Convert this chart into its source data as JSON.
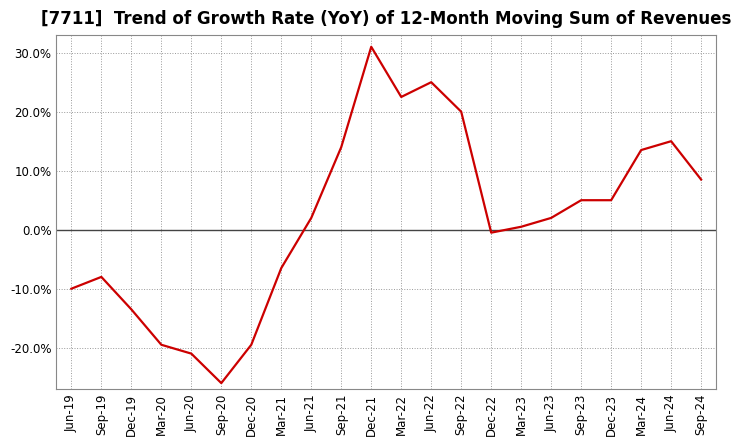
{
  "title": "[7711]  Trend of Growth Rate (YoY) of 12-Month Moving Sum of Revenues",
  "x_labels": [
    "Jun-19",
    "Sep-19",
    "Dec-19",
    "Mar-20",
    "Jun-20",
    "Sep-20",
    "Dec-20",
    "Mar-21",
    "Jun-21",
    "Sep-21",
    "Dec-21",
    "Mar-22",
    "Jun-22",
    "Sep-22",
    "Dec-22",
    "Mar-23",
    "Jun-23",
    "Sep-23",
    "Dec-23",
    "Mar-24",
    "Jun-24",
    "Sep-24"
  ],
  "y_values": [
    -10.0,
    -8.0,
    -13.5,
    -19.5,
    -21.0,
    -26.0,
    -19.5,
    -6.5,
    2.0,
    14.0,
    31.0,
    22.5,
    25.0,
    20.0,
    -0.5,
    0.5,
    2.0,
    5.0,
    5.0,
    13.5,
    15.0,
    8.5
  ],
  "line_color": "#cc0000",
  "background_color": "#ffffff",
  "plot_bg_color": "#ffffff",
  "grid_color": "#999999",
  "zero_line_color": "#444444",
  "ylim": [
    -27,
    33
  ],
  "yticks": [
    -20.0,
    -10.0,
    0.0,
    10.0,
    20.0,
    30.0
  ],
  "title_fontsize": 12,
  "tick_fontsize": 8.5,
  "line_width": 1.6
}
